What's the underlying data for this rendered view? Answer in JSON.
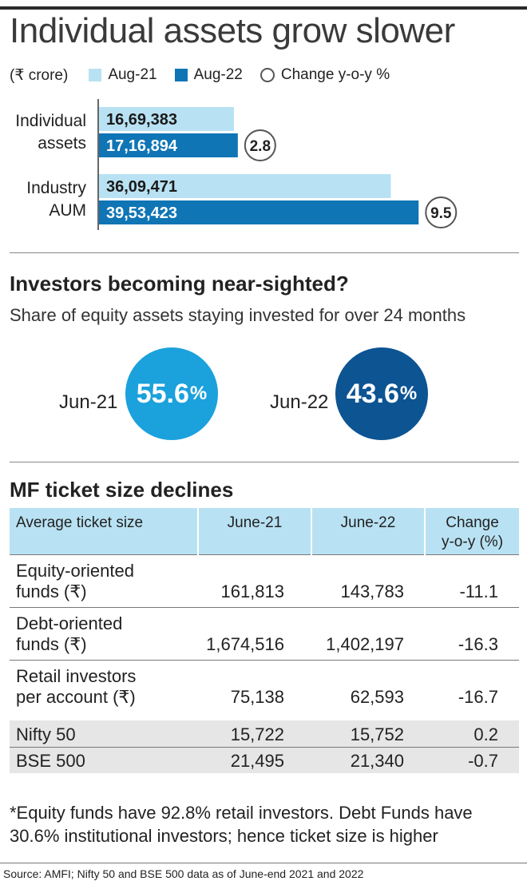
{
  "title": "Individual assets grow slower",
  "legend": {
    "unit": "(₹ crore)",
    "series1": "Aug-21",
    "series2": "Aug-22",
    "change": "Change y-o-y %"
  },
  "colors": {
    "aug21": "#b8e2f3",
    "aug22": "#0f75b5",
    "jun21_bubble": "#1ba1dc",
    "jun22_bubble": "#0d5493"
  },
  "chart_data": [
    {
      "type": "bar",
      "orientation": "horizontal",
      "title": "Individual assets grow slower",
      "unit": "₹ crore",
      "categories": [
        "Individual assets",
        "Industry AUM"
      ],
      "category_lines": [
        [
          "Individual",
          "assets"
        ],
        [
          "Industry",
          "AUM"
        ]
      ],
      "series": [
        {
          "name": "Aug-21",
          "values": [
            1669383,
            3609471
          ],
          "labels": [
            "16,69,383",
            "36,09,471"
          ]
        },
        {
          "name": "Aug-22",
          "values": [
            1716894,
            3953423
          ],
          "labels": [
            "17,16,894",
            "39,53,423"
          ]
        }
      ],
      "change_yoy_pct": [
        2.8,
        9.5
      ],
      "change_labels": [
        "2.8",
        "9.5"
      ],
      "xlim": [
        0,
        4000000
      ],
      "grid": false
    },
    {
      "type": "bubble",
      "title": "Investors becoming near-sighted?",
      "subtitle": "Share of equity assets staying invested for over 24 months",
      "categories": [
        "Jun-21",
        "Jun-22"
      ],
      "values": [
        55.6,
        43.6
      ],
      "value_labels": [
        "55.6",
        "43.6"
      ],
      "unit": "%"
    },
    {
      "type": "table",
      "title": "MF ticket size declines",
      "columns": [
        "Average ticket size",
        "June-21",
        "June-22",
        "Change"
      ],
      "column_sub": [
        "",
        "",
        "",
        "y-o-y (%)"
      ],
      "rows": [
        {
          "label": [
            "Equity-oriented",
            "funds (₹)"
          ],
          "jun21": "161,813",
          "jun22": "143,783",
          "change": "-11.1"
        },
        {
          "label": [
            "Debt-oriented",
            "funds (₹)"
          ],
          "jun21": "1,674,516",
          "jun22": "1,402,197",
          "change": "-16.3"
        },
        {
          "label": [
            "Retail investors",
            "per account (₹)"
          ],
          "jun21": "75,138",
          "jun22": "62,593",
          "change": "-16.7"
        }
      ],
      "index_rows": [
        {
          "label": "Nifty 50",
          "jun21": "15,722",
          "jun22": "15,752",
          "change": "0.2"
        },
        {
          "label": "BSE 500",
          "jun21": "21,495",
          "jun22": "21,340",
          "change": "-0.7"
        }
      ]
    }
  ],
  "section2": {
    "title": "Investors becoming near-sighted?",
    "subtitle": "Share of equity assets staying invested for over 24 months",
    "jun21_label": "Jun-21",
    "jun21_value": "55.6",
    "jun22_label": "Jun-22",
    "jun22_value": "43.6",
    "pct": "%"
  },
  "section3": {
    "title": "MF ticket size declines",
    "col_label": "Average ticket size",
    "col_jun21": "June-21",
    "col_jun22": "June-22",
    "col_change": "Change",
    "col_change_sub": "y-o-y (%)",
    "rows": [
      {
        "l1": "Equity-oriented",
        "l2": "funds (₹)",
        "jun21": "161,813",
        "jun22": "143,783",
        "change": "-11.1"
      },
      {
        "l1": "Debt-oriented",
        "l2": "funds (₹)",
        "jun21": "1,674,516",
        "jun22": "1,402,197",
        "change": "-16.3"
      },
      {
        "l1": "Retail investors",
        "l2": "per account (₹)",
        "jun21": "75,138",
        "jun22": "62,593",
        "change": "-16.7"
      }
    ],
    "index_rows": [
      {
        "label": "Nifty 50",
        "jun21": "15,722",
        "jun22": "15,752",
        "change": "0.2"
      },
      {
        "label": "BSE 500",
        "jun21": "21,495",
        "jun22": "21,340",
        "change": "-0.7"
      }
    ]
  },
  "footnote": "*Equity funds have 92.8% retail investors. Debt Funds have 30.6% institutional investors; hence ticket size is higher",
  "source": "Source: AMFI; Nifty 50 and BSE 500 data as of June-end 2021 and 2022"
}
